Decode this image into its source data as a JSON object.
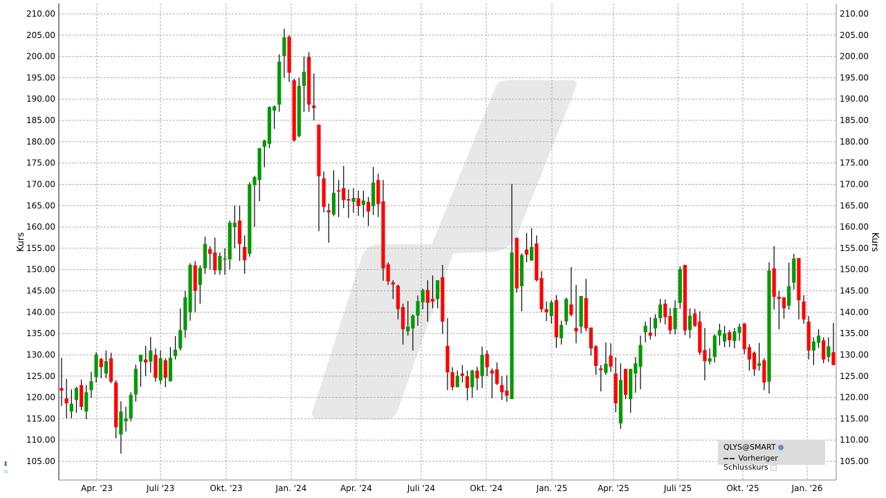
{
  "chart_data": {
    "type": "candlestick",
    "ylabel": "Kurs",
    "ylim": [
      100,
      212
    ],
    "yticks": [
      "105.00",
      "110.00",
      "115.00",
      "120.00",
      "125.00",
      "130.00",
      "135.00",
      "140.00",
      "145.00",
      "150.00",
      "155.00",
      "160.00",
      "165.00",
      "170.00",
      "175.00",
      "180.00",
      "185.00",
      "190.00",
      "195.00",
      "200.00",
      "205.00",
      "210.00"
    ],
    "xticks": [
      "Apr. '23",
      "Juli '23",
      "Okt. '23",
      "Jan. '24",
      "Apr. '24",
      "Juli '24",
      "Okt. '24",
      "Jan. '25",
      "Apr. '25",
      "Juli '25",
      "Okt. '25",
      "Jan. '26"
    ],
    "grid": true,
    "legend_placement": "bottom-right",
    "colors": {
      "up": "#009900",
      "down": "#ff0000",
      "wick": "#000000",
      "watermark": "#e8e8e8"
    },
    "ohlc_fields": [
      "open",
      "high",
      "low",
      "close"
    ],
    "candles": [
      [
        122.2,
        129.3,
        118.0,
        121.6
      ],
      [
        119.8,
        124.3,
        115.1,
        118.6
      ],
      [
        116.7,
        121.9,
        115.1,
        118.5
      ],
      [
        119.4,
        122.5,
        116.4,
        122.2
      ],
      [
        122.9,
        124.2,
        117.0,
        117.8
      ],
      [
        116.7,
        122.9,
        114.9,
        121.2
      ],
      [
        121.7,
        126.0,
        119.9,
        123.8
      ],
      [
        124.8,
        130.6,
        123.5,
        130.0
      ],
      [
        129.0,
        129.3,
        124.5,
        127.1
      ],
      [
        125.6,
        131.0,
        124.5,
        128.5
      ],
      [
        129.2,
        130.5,
        123.3,
        123.7
      ],
      [
        123.5,
        124.0,
        110.4,
        113.0
      ],
      [
        111.3,
        119.1,
        106.8,
        116.7
      ],
      [
        114.4,
        117.8,
        112.0,
        115.1
      ],
      [
        115.1,
        121.2,
        114.4,
        120.6
      ],
      [
        120.7,
        127.7,
        119.0,
        126.7
      ],
      [
        128.4,
        130.0,
        122.5,
        130.0
      ],
      [
        128.9,
        132.1,
        125.0,
        128.2
      ],
      [
        128.4,
        134.2,
        125.8,
        131.0
      ],
      [
        130.0,
        131.5,
        123.7,
        124.6
      ],
      [
        124.0,
        131.0,
        123.2,
        129.2
      ],
      [
        128.7,
        129.2,
        122.4,
        124.6
      ],
      [
        123.8,
        131.8,
        123.7,
        129.3
      ],
      [
        129.7,
        134.4,
        128.9,
        131.2
      ],
      [
        131.5,
        140.9,
        131.0,
        135.8
      ],
      [
        135.8,
        145.0,
        134.0,
        143.5
      ],
      [
        140.0,
        151.5,
        138.0,
        151.1
      ],
      [
        151.0,
        152.0,
        140.0,
        145.0
      ],
      [
        146.4,
        151.0,
        142.0,
        150.4
      ],
      [
        150.3,
        157.7,
        149.0,
        156.0
      ],
      [
        154.8,
        155.5,
        150.0,
        153.7
      ],
      [
        154.0,
        157.5,
        148.8,
        149.8
      ],
      [
        149.8,
        154.0,
        148.8,
        153.2
      ],
      [
        152.4,
        155.0,
        148.8,
        152.6
      ],
      [
        152.4,
        161.5,
        150.0,
        161.0
      ],
      [
        160.0,
        165.0,
        155.0,
        161.0
      ],
      [
        161.5,
        165.0,
        152.0,
        156.0
      ],
      [
        155.3,
        158.0,
        149.0,
        152.2
      ],
      [
        153.7,
        170.5,
        153.0,
        170.0
      ],
      [
        169.8,
        172.0,
        160.0,
        171.7
      ],
      [
        171.0,
        178.5,
        166.0,
        178.5
      ],
      [
        178.8,
        180.5,
        174.0,
        180.3
      ],
      [
        179.5,
        188.3,
        178.5,
        188.1
      ],
      [
        187.3,
        188.5,
        183.0,
        188.3
      ],
      [
        188.7,
        200.5,
        187.0,
        198.8
      ],
      [
        200.1,
        206.5,
        195.0,
        204.5
      ],
      [
        204.6,
        205.0,
        194.0,
        196.2
      ],
      [
        194.4,
        194.8,
        180.0,
        180.3
      ],
      [
        181.3,
        195.0,
        181.0,
        193.1
      ],
      [
        193.1,
        200.0,
        187.0,
        196.4
      ],
      [
        199.9,
        201.0,
        187.0,
        188.7
      ],
      [
        188.5,
        196.0,
        185.0,
        187.9
      ],
      [
        184.0,
        184.0,
        159.0,
        171.9
      ],
      [
        171.4,
        173.0,
        163.4,
        164.7
      ],
      [
        163.9,
        165.5,
        156.3,
        163.4
      ],
      [
        162.9,
        173.3,
        162.5,
        168.0
      ],
      [
        168.6,
        171.0,
        162.3,
        168.3
      ],
      [
        169.1,
        174.3,
        164.4,
        166.3
      ],
      [
        166.5,
        168.8,
        162.1,
        166.2
      ],
      [
        165.9,
        169.1,
        163.3,
        166.8
      ],
      [
        166.7,
        168.5,
        162.6,
        164.9
      ],
      [
        165.2,
        168.5,
        162.3,
        166.2
      ],
      [
        165.9,
        167.0,
        160.2,
        163.6
      ],
      [
        164.9,
        174.1,
        162.8,
        170.4
      ],
      [
        171.0,
        172.5,
        162.3,
        165.4
      ],
      [
        166.0,
        171.0,
        147.4,
        150.3
      ],
      [
        151.2,
        151.7,
        146.4,
        147.2
      ],
      [
        147.0,
        147.5,
        143.1,
        146.5
      ],
      [
        146.2,
        146.5,
        138.3,
        140.7
      ],
      [
        141.2,
        142.0,
        132.4,
        136.0
      ],
      [
        135.5,
        142.6,
        134.5,
        136.6
      ],
      [
        136.2,
        139.5,
        131.0,
        139.2
      ],
      [
        139.2,
        143.9,
        136.8,
        142.6
      ],
      [
        142.3,
        145.5,
        140.7,
        145.2
      ],
      [
        145.2,
        147.5,
        137.8,
        142.2
      ],
      [
        143.1,
        148.6,
        140.9,
        142.5
      ],
      [
        143.1,
        147.5,
        140.9,
        147.5
      ],
      [
        148.2,
        151.1,
        134.9,
        137.8
      ],
      [
        132.1,
        138.6,
        121.7,
        125.9
      ],
      [
        125.9,
        127.1,
        121.7,
        122.4
      ],
      [
        122.4,
        126.3,
        122.4,
        125.1
      ],
      [
        125.6,
        127.6,
        123.5,
        125.1
      ],
      [
        125.0,
        126.3,
        119.3,
        122.2
      ],
      [
        122.4,
        126.5,
        119.9,
        126.3
      ],
      [
        126.3,
        127.2,
        121.7,
        124.5
      ],
      [
        125.0,
        131.9,
        122.2,
        130.0
      ],
      [
        130.2,
        131.0,
        125.0,
        127.1
      ],
      [
        126.3,
        126.8,
        119.8,
        125.6
      ],
      [
        126.6,
        128.2,
        122.9,
        123.2
      ],
      [
        122.9,
        125.0,
        119.4,
        121.2
      ],
      [
        121.6,
        125.2,
        119.0,
        120.4
      ],
      [
        119.6,
        170.1,
        119.6,
        154.0
      ],
      [
        157.4,
        157.6,
        144.6,
        145.6
      ],
      [
        146.1,
        153.8,
        140.2,
        153.4
      ],
      [
        154.7,
        158.6,
        151.7,
        153.5
      ],
      [
        152.1,
        159.7,
        152.1,
        155.3
      ],
      [
        156.1,
        158.0,
        147.2,
        147.5
      ],
      [
        148.0,
        149.6,
        140.0,
        140.7
      ],
      [
        140.7,
        142.5,
        137.9,
        140.0
      ],
      [
        139.1,
        142.8,
        137.3,
        142.3
      ],
      [
        142.8,
        144.0,
        131.6,
        134.1
      ],
      [
        133.9,
        138.0,
        132.4,
        137.0
      ],
      [
        137.8,
        143.4,
        137.0,
        143.1
      ],
      [
        141.8,
        150.6,
        139.0,
        139.4
      ],
      [
        136.3,
        146.4,
        132.7,
        135.5
      ],
      [
        136.6,
        143.8,
        135.0,
        143.8
      ],
      [
        143.3,
        147.8,
        135.5,
        136.2
      ],
      [
        136.4,
        136.4,
        129.8,
        131.5
      ],
      [
        132.0,
        132.3,
        125.3,
        127.4
      ],
      [
        126.8,
        127.6,
        121.4,
        126.4
      ],
      [
        125.8,
        132.9,
        125.3,
        127.9
      ],
      [
        129.8,
        132.7,
        126.0,
        127.2
      ],
      [
        125.6,
        129.4,
        116.5,
        118.6
      ],
      [
        113.9,
        128.0,
        112.6,
        124.1
      ],
      [
        126.7,
        126.7,
        119.6,
        120.6
      ],
      [
        119.6,
        126.7,
        116.4,
        126.7
      ],
      [
        125.6,
        129.5,
        121.1,
        128.0
      ],
      [
        127.2,
        134.5,
        121.9,
        132.3
      ],
      [
        135.3,
        137.8,
        132.9,
        136.8
      ],
      [
        135.2,
        138.8,
        133.6,
        134.5
      ],
      [
        136.2,
        139.5,
        134.3,
        138.6
      ],
      [
        138.6,
        143.1,
        137.5,
        141.8
      ],
      [
        142.0,
        143.0,
        137.1,
        138.8
      ],
      [
        139.1,
        141.0,
        134.8,
        135.7
      ],
      [
        136.0,
        142.8,
        134.8,
        141.0
      ],
      [
        142.2,
        150.8,
        140.8,
        150.1
      ],
      [
        151.1,
        151.1,
        134.6,
        135.7
      ],
      [
        135.8,
        140.9,
        133.9,
        139.2
      ],
      [
        139.7,
        140.8,
        136.5,
        136.8
      ],
      [
        137.8,
        140.2,
        130.0,
        130.5
      ],
      [
        131.1,
        136.3,
        124.0,
        128.5
      ],
      [
        128.4,
        131.5,
        127.7,
        129.2
      ],
      [
        129.5,
        134.8,
        128.2,
        134.5
      ],
      [
        134.5,
        137.3,
        132.2,
        135.8
      ],
      [
        133.1,
        136.8,
        131.8,
        135.0
      ],
      [
        135.3,
        135.8,
        131.8,
        133.4
      ],
      [
        133.2,
        136.3,
        131.5,
        135.5
      ],
      [
        135.2,
        137.3,
        133.3,
        136.6
      ],
      [
        137.3,
        137.5,
        130.2,
        131.3
      ],
      [
        131.8,
        132.5,
        126.3,
        128.9
      ],
      [
        130.5,
        130.8,
        125.1,
        126.6
      ],
      [
        127.4,
        132.8,
        126.3,
        128.0
      ],
      [
        128.7,
        129.2,
        121.7,
        123.5
      ],
      [
        123.7,
        151.7,
        120.9,
        149.8
      ],
      [
        150.3,
        155.5,
        140.6,
        143.6
      ],
      [
        143.6,
        145.0,
        136.0,
        143.1
      ],
      [
        143.5,
        143.5,
        138.5,
        140.9
      ],
      [
        141.5,
        151.6,
        140.6,
        146.1
      ],
      [
        146.9,
        153.7,
        145.3,
        152.6
      ],
      [
        152.7,
        152.7,
        138.3,
        142.8
      ],
      [
        142.5,
        144.0,
        137.3,
        138.3
      ],
      [
        137.8,
        139.1,
        128.9,
        131.0
      ],
      [
        131.0,
        134.1,
        127.6,
        133.1
      ],
      [
        132.8,
        136.0,
        131.6,
        134.5
      ],
      [
        133.4,
        134.1,
        128.0,
        128.9
      ],
      [
        129.5,
        134.1,
        128.3,
        132.0
      ],
      [
        130.6,
        137.5,
        127.5,
        127.6
      ]
    ]
  },
  "legend": {
    "instrument": "QLYS@SMART",
    "instrument_icon": "globe-icon",
    "prev_close_label": "Vorheriger Schlusskurs"
  },
  "corner_icon": "chart-settings-icon"
}
